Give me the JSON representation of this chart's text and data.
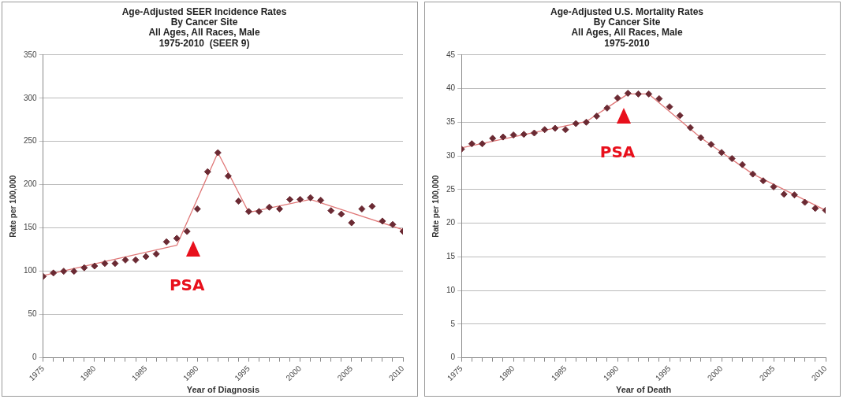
{
  "chart_data": [
    {
      "type": "scatter",
      "title": "Age-Adjusted SEER Incidence Rates\nBy Cancer Site\nAll Ages, All Races, Male\n1975-2010  (SEER 9)",
      "xlabel": "Year of Diagnosis",
      "ylabel": "Rate per 100,000",
      "marker": "diamond",
      "grid": "y",
      "xlim": [
        1975,
        2010
      ],
      "xticks": [
        1975,
        {
          "value": 1976,
          "label": null
        },
        {
          "value": 1977,
          "label": null
        },
        {
          "value": 1978,
          "label": null
        },
        {
          "value": 1979,
          "label": null
        },
        1980,
        {
          "value": 1981,
          "label": null
        },
        {
          "value": 1982,
          "label": null
        },
        {
          "value": 1983,
          "label": null
        },
        {
          "value": 1984,
          "label": null
        },
        1985,
        {
          "value": 1986,
          "label": null
        },
        {
          "value": 1987,
          "label": null
        },
        {
          "value": 1988,
          "label": null
        },
        {
          "value": 1989,
          "label": null
        },
        1990,
        {
          "value": 1991,
          "label": null
        },
        {
          "value": 1992,
          "label": null
        },
        {
          "value": 1993,
          "label": null
        },
        {
          "value": 1994,
          "label": null
        },
        1995,
        {
          "value": 1996,
          "label": null
        },
        {
          "value": 1997,
          "label": null
        },
        {
          "value": 1998,
          "label": null
        },
        {
          "value": 1999,
          "label": null
        },
        2000,
        {
          "value": 2001,
          "label": null
        },
        {
          "value": 2002,
          "label": null
        },
        {
          "value": 2003,
          "label": null
        },
        {
          "value": 2004,
          "label": null
        },
        2005,
        {
          "value": 2006,
          "label": null
        },
        {
          "value": 2007,
          "label": null
        },
        {
          "value": 2008,
          "label": null
        },
        {
          "value": 2009,
          "label": null
        },
        2010
      ],
      "ylim": [
        0,
        350
      ],
      "yticks": [
        0,
        50,
        100,
        150,
        200,
        250,
        300,
        350
      ],
      "annotations": [
        {
          "text": "PSA",
          "x": 1989,
          "y": 146
        }
      ],
      "series": [
        {
          "type": "scatter",
          "color": "#6b2a33",
          "x": [
            1975,
            1976,
            1977,
            1978,
            1979,
            1980,
            1981,
            1982,
            1983,
            1984,
            1985,
            1986,
            1987,
            1988,
            1989,
            1990,
            1991,
            1992,
            1993,
            1994,
            1995,
            1996,
            1997,
            1998,
            1999,
            2000,
            2001,
            2002,
            2003,
            2004,
            2005,
            2006,
            2007,
            2008,
            2009,
            2010
          ],
          "values": [
            94,
            98,
            100,
            100,
            104,
            106,
            109,
            109,
            113,
            113,
            117,
            120,
            134,
            138,
            146,
            172,
            215,
            237,
            210,
            181,
            169,
            169,
            174,
            172,
            183,
            183,
            185,
            182,
            170,
            166,
            156,
            172,
            175,
            158,
            154,
            146
          ]
        },
        {
          "type": "line",
          "marker": "none",
          "color": "#e07878",
          "x": [
            1975,
            1988,
            1992,
            1995,
            2001,
            2010
          ],
          "values": [
            95,
            130,
            237,
            168,
            183,
            148
          ]
        }
      ]
    },
    {
      "type": "scatter",
      "title": "Age-Adjusted U.S. Mortality Rates\nBy Cancer Site\nAll Ages, All Races, Male\n1975-2010",
      "xlabel": "Year of Death",
      "ylabel": "Rate per 100,000",
      "marker": "diamond",
      "grid": "y",
      "xlim": [
        1975,
        2010
      ],
      "xticks": [
        1975,
        {
          "value": 1976,
          "label": null
        },
        {
          "value": 1977,
          "label": null
        },
        {
          "value": 1978,
          "label": null
        },
        {
          "value": 1979,
          "label": null
        },
        1980,
        {
          "value": 1981,
          "label": null
        },
        {
          "value": 1982,
          "label": null
        },
        {
          "value": 1983,
          "label": null
        },
        {
          "value": 1984,
          "label": null
        },
        1985,
        {
          "value": 1986,
          "label": null
        },
        {
          "value": 1987,
          "label": null
        },
        {
          "value": 1988,
          "label": null
        },
        {
          "value": 1989,
          "label": null
        },
        1990,
        {
          "value": 1991,
          "label": null
        },
        {
          "value": 1992,
          "label": null
        },
        {
          "value": 1993,
          "label": null
        },
        {
          "value": 1994,
          "label": null
        },
        1995,
        {
          "value": 1996,
          "label": null
        },
        {
          "value": 1997,
          "label": null
        },
        {
          "value": 1998,
          "label": null
        },
        {
          "value": 1999,
          "label": null
        },
        2000,
        {
          "value": 2001,
          "label": null
        },
        {
          "value": 2002,
          "label": null
        },
        {
          "value": 2003,
          "label": null
        },
        {
          "value": 2004,
          "label": null
        },
        2005,
        {
          "value": 2006,
          "label": null
        },
        {
          "value": 2007,
          "label": null
        },
        {
          "value": 2008,
          "label": null
        },
        {
          "value": 2009,
          "label": null
        },
        2010
      ],
      "ylim": [
        0,
        45
      ],
      "yticks": [
        0,
        5,
        10,
        15,
        20,
        25,
        30,
        35,
        40,
        45
      ],
      "annotations": [
        {
          "text": "PSA",
          "x": 1990,
          "y": 38.6
        }
      ],
      "series": [
        {
          "type": "scatter",
          "color": "#6b2a33",
          "x": [
            1975,
            1976,
            1977,
            1978,
            1979,
            1980,
            1981,
            1982,
            1983,
            1984,
            1985,
            1986,
            1987,
            1988,
            1989,
            1990,
            1991,
            1992,
            1993,
            1994,
            1995,
            1996,
            1997,
            1998,
            1999,
            2000,
            2001,
            2002,
            2003,
            2004,
            2005,
            2006,
            2007,
            2008,
            2009,
            2010
          ],
          "values": [
            31.0,
            31.8,
            31.8,
            32.6,
            32.8,
            33.1,
            33.2,
            33.4,
            33.9,
            34.1,
            33.9,
            34.8,
            35.0,
            35.9,
            37.1,
            38.6,
            39.3,
            39.2,
            39.2,
            38.5,
            37.3,
            36.0,
            34.2,
            32.7,
            31.7,
            30.5,
            29.6,
            28.7,
            27.3,
            26.3,
            25.4,
            24.3,
            24.2,
            23.1,
            22.2,
            21.9
          ]
        },
        {
          "type": "line",
          "marker": "none",
          "color": "#e07878",
          "x": [
            1975,
            1987,
            1991,
            1993,
            1998,
            2003,
            2010
          ],
          "values": [
            31.2,
            35.1,
            39.2,
            39.2,
            32.7,
            27.3,
            21.9
          ]
        }
      ]
    }
  ]
}
